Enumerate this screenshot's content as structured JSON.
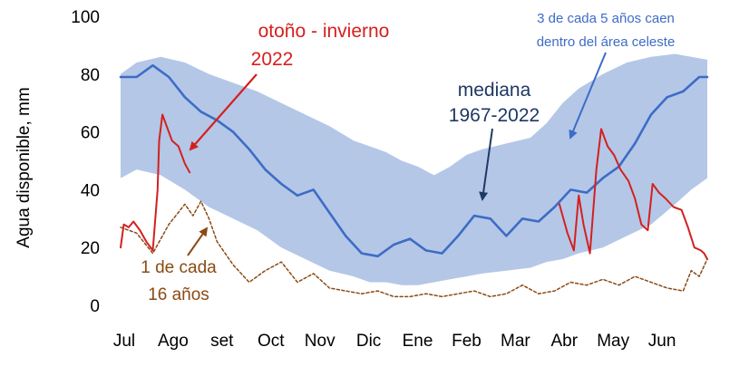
{
  "chart_data": {
    "type": "area",
    "title": "",
    "xlabel": "",
    "ylabel": "Agua disponible, mm",
    "ylim": [
      0,
      100
    ],
    "yticks": [
      "0",
      "20",
      "40",
      "60",
      "80",
      "100"
    ],
    "xlim": [
      0,
      365
    ],
    "months": [
      "Jul",
      "Ago",
      "set",
      "Oct",
      "Nov",
      "Dic",
      "Ene",
      "Feb",
      "Mar",
      "Abr",
      "May",
      "Jun"
    ],
    "grid": false,
    "band": {
      "day": [
        0,
        10,
        25,
        40,
        55,
        70,
        85,
        100,
        115,
        130,
        145,
        155,
        165,
        175,
        185,
        195,
        205,
        215,
        225,
        240,
        255,
        265,
        275,
        285,
        300,
        315,
        330,
        345,
        355,
        365
      ],
      "lower": [
        44,
        47,
        45,
        40,
        34,
        30,
        26,
        20,
        16,
        12,
        10,
        8,
        8,
        7,
        7,
        8,
        9,
        10,
        11,
        12,
        13,
        15,
        16,
        18,
        20,
        24,
        28,
        35,
        40,
        44
      ],
      "upper": [
        80,
        84,
        86,
        84,
        80,
        77,
        74,
        70,
        66,
        62,
        57,
        55,
        53,
        50,
        48,
        45,
        48,
        52,
        54,
        56,
        58,
        63,
        70,
        75,
        80,
        84,
        86,
        87,
        86,
        85
      ]
    },
    "series": [
      {
        "name": "mediana 1967-2022",
        "color": "#3d6cc6",
        "day": [
          0,
          10,
          20,
          30,
          40,
          50,
          60,
          70,
          80,
          90,
          100,
          110,
          120,
          130,
          140,
          150,
          160,
          170,
          180,
          190,
          200,
          210,
          220,
          230,
          240,
          250,
          260,
          270,
          280,
          290,
          300,
          310,
          320,
          330,
          340,
          350,
          360,
          365
        ],
        "value": [
          79,
          79,
          83,
          79,
          72,
          67,
          64,
          60,
          54,
          47,
          42,
          38,
          40,
          32,
          24,
          18,
          17,
          21,
          23,
          19,
          18,
          24,
          31,
          30,
          24,
          30,
          29,
          34,
          40,
          39,
          44,
          48,
          56,
          66,
          72,
          74,
          79,
          79
        ]
      },
      {
        "name": "otoño - invierno 2022",
        "color": "#d42020",
        "day": [
          0,
          2,
          5,
          8,
          12,
          16,
          20,
          23,
          24,
          26,
          28,
          32,
          36,
          40,
          43,
          273,
          278,
          282,
          285,
          288,
          292,
          296,
          299,
          303,
          307,
          311,
          316,
          320,
          324,
          328,
          331,
          335,
          339,
          344,
          349,
          353,
          357,
          361,
          363,
          365
        ],
        "value": [
          20,
          28,
          27,
          29,
          26,
          22,
          19,
          40,
          57,
          66,
          63,
          57,
          55,
          49,
          46,
          35,
          25,
          19,
          38,
          28,
          18,
          47,
          61,
          55,
          52,
          47,
          43,
          37,
          28,
          26,
          42,
          39,
          37,
          34,
          33,
          27,
          20,
          19,
          18,
          16
        ]
      },
      {
        "name": "1 de cada 16 años",
        "color": "#8b4a14",
        "day": [
          0,
          10,
          20,
          30,
          40,
          45,
          50,
          55,
          60,
          70,
          80,
          90,
          100,
          110,
          120,
          130,
          140,
          150,
          160,
          170,
          180,
          190,
          200,
          210,
          220,
          230,
          240,
          250,
          260,
          270,
          280,
          290,
          300,
          310,
          320,
          330,
          340,
          350,
          355,
          360,
          365
        ],
        "value": [
          27,
          25,
          18,
          28,
          35,
          31,
          36,
          30,
          22,
          14,
          8,
          12,
          15,
          8,
          11,
          6,
          5,
          4,
          5,
          3,
          3,
          4,
          3,
          4,
          5,
          3,
          4,
          7,
          4,
          5,
          8,
          7,
          9,
          7,
          10,
          8,
          6,
          5,
          12,
          10,
          16
        ]
      }
    ],
    "annotations": {
      "band_label": [
        "3 de cada 5 años caen",
        "dentro del área celeste"
      ],
      "median_label": [
        "mediana",
        "1967-2022"
      ],
      "current_label": [
        "otoño - invierno",
        "2022"
      ],
      "rare_label": [
        "1 de cada",
        "16 años"
      ]
    },
    "colors": {
      "band": "#b4c7e7",
      "median": "#3d6cc6",
      "current": "#d42020",
      "rare": "#8b4a14",
      "band_text": "#3d6cc6",
      "median_text": "#1f3864"
    }
  }
}
